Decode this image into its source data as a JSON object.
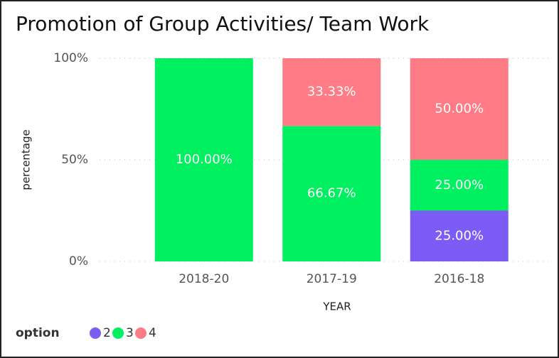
{
  "chart_data": {
    "type": "stacked_bar",
    "title": "Promotion of Group Activities/ Team Work",
    "xlabel": "YEAR",
    "ylabel": "percentage",
    "legend_title": "option",
    "legend": "bottom-left",
    "categories": [
      "2018-20",
      "2017-19",
      "2016-18"
    ],
    "series": [
      {
        "name": "2",
        "color": "#7b5cf5",
        "values": [
          null,
          null,
          25
        ],
        "value_labels": [
          null,
          null,
          "25.00%"
        ]
      },
      {
        "name": "3",
        "color": "#00f060",
        "values": [
          100,
          66.67,
          25
        ],
        "value_labels": [
          "100.00%",
          "66.67%",
          "25.00%"
        ]
      },
      {
        "name": "4",
        "color": "#ff7b85",
        "values": [
          null,
          33.33,
          50
        ],
        "value_labels": [
          null,
          "33.33%",
          "50.00%"
        ]
      }
    ],
    "ylim": [
      0,
      100
    ],
    "yticks": [
      {
        "value": 0,
        "label": "0%"
      },
      {
        "value": 50,
        "label": "50%"
      },
      {
        "value": 100,
        "label": "100%"
      }
    ],
    "grid": true
  }
}
